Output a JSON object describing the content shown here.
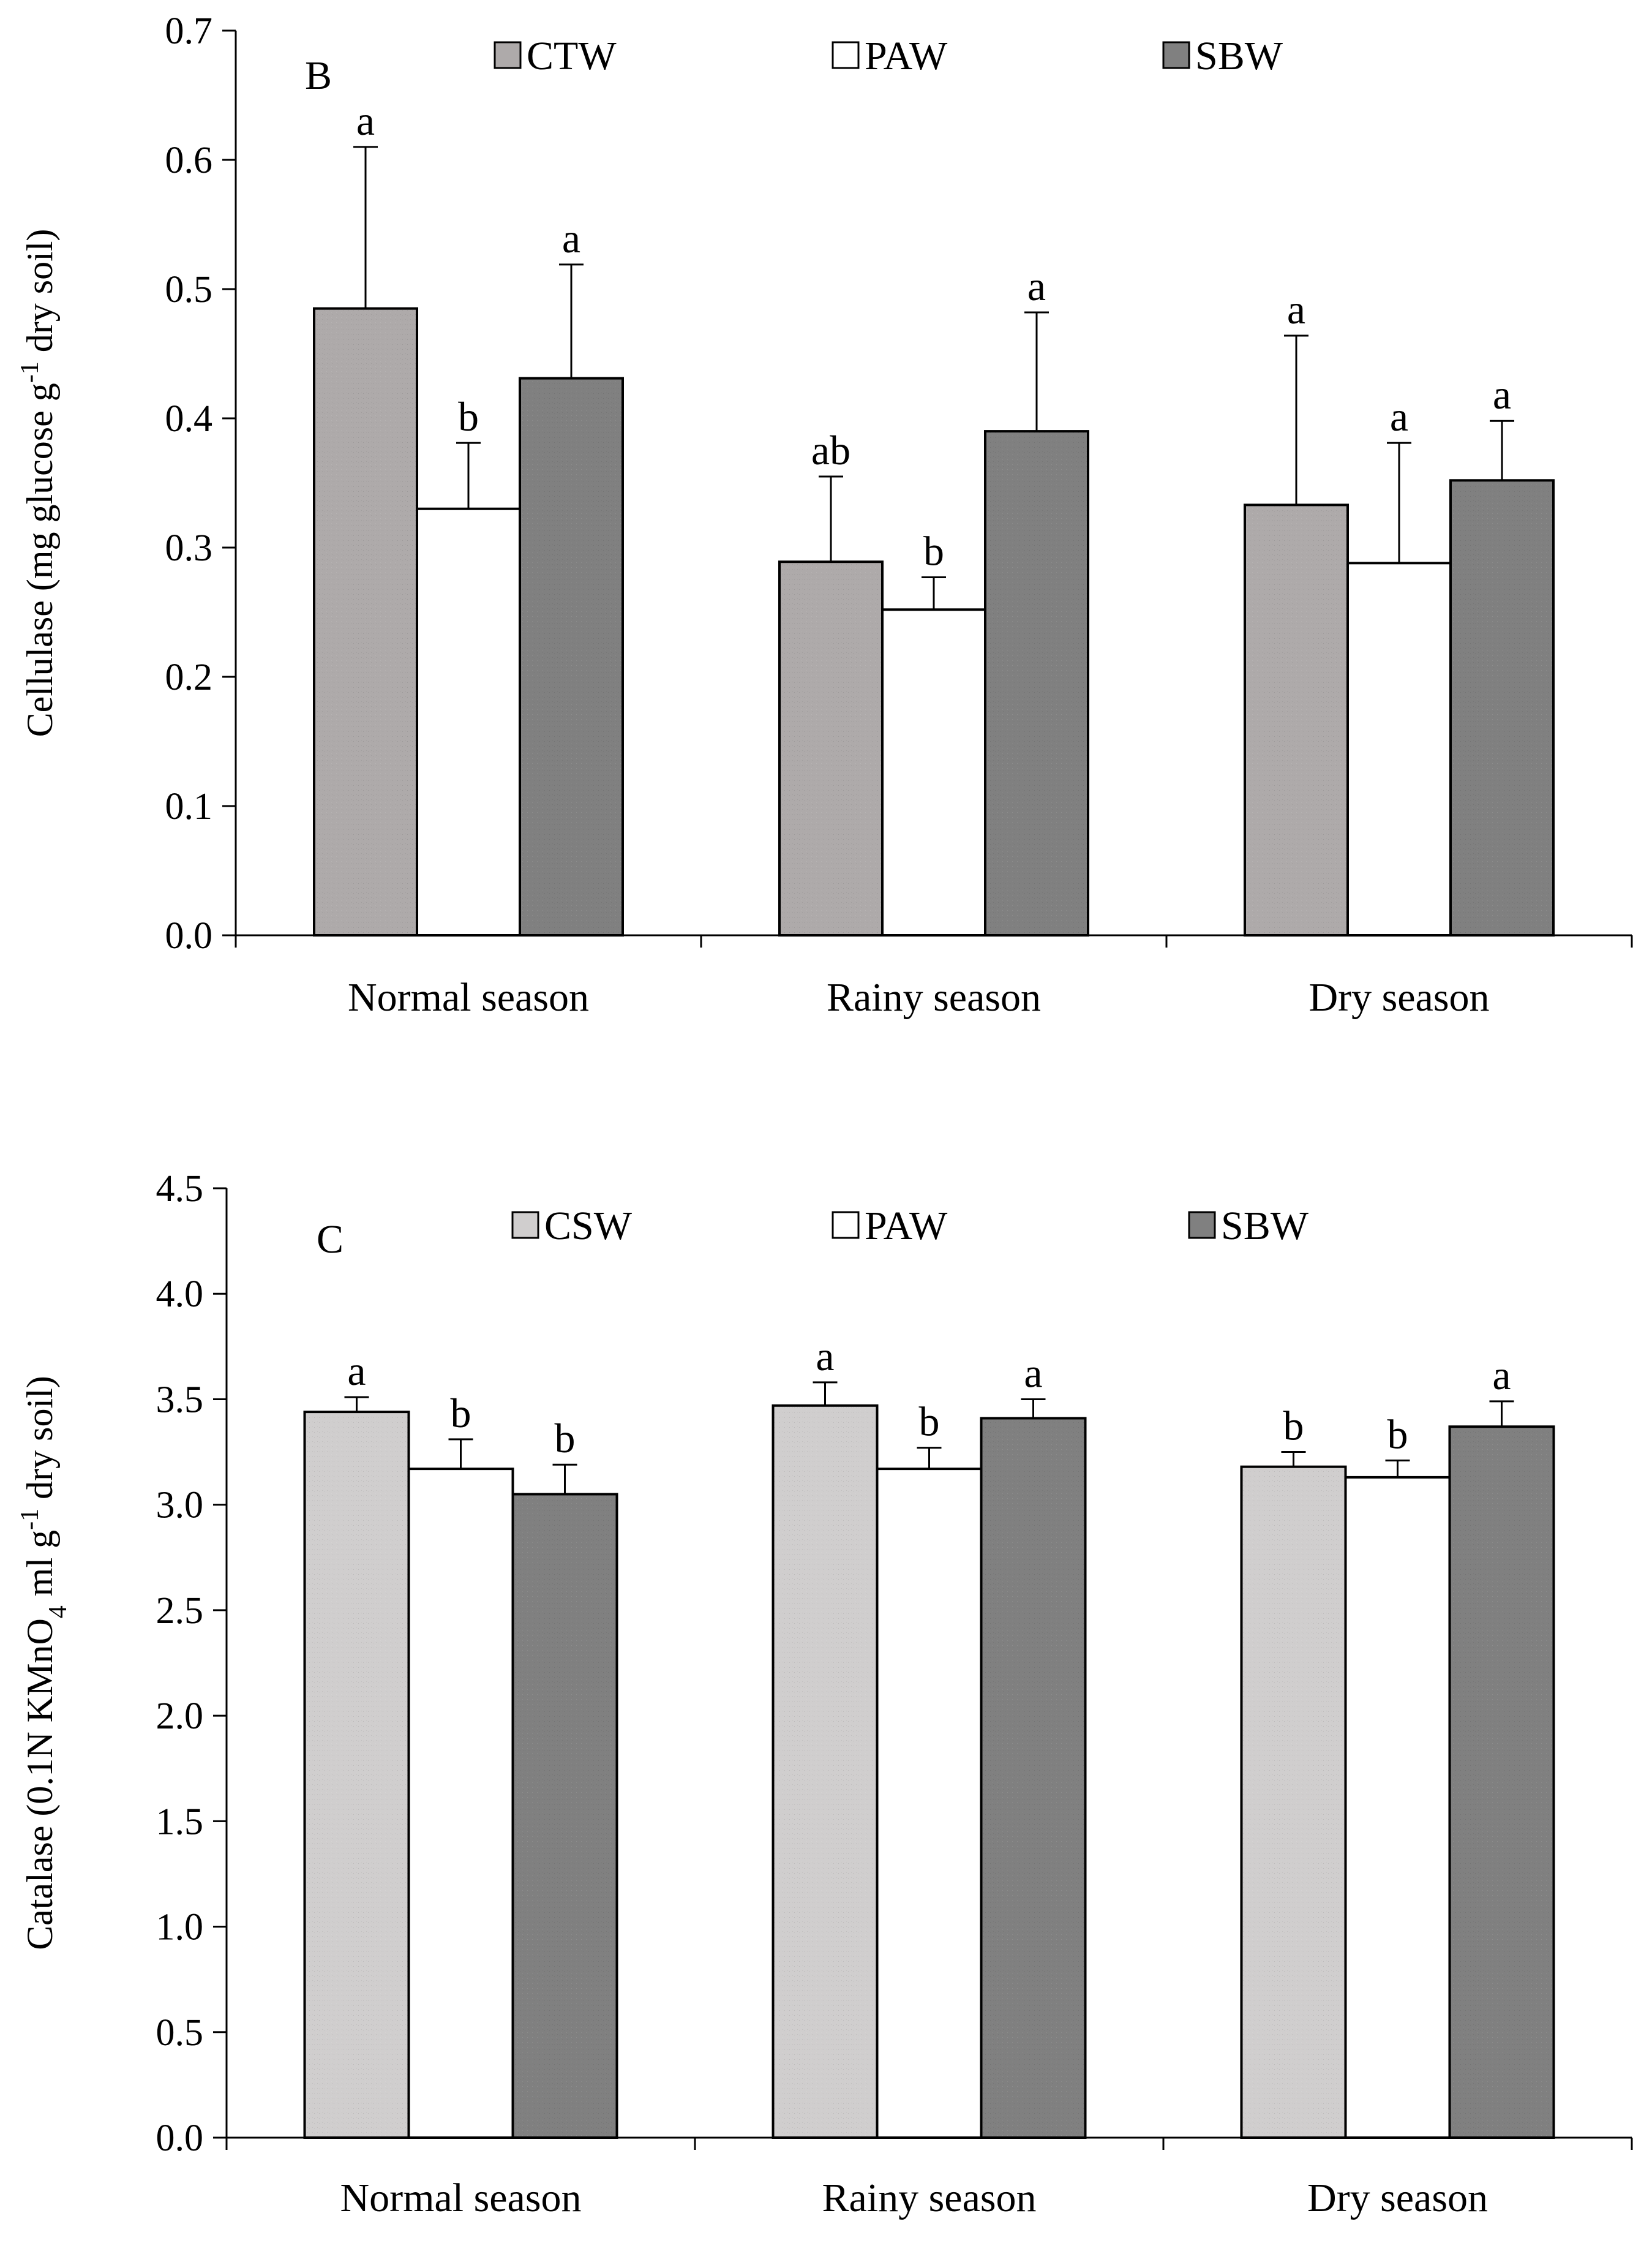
{
  "chart_data": [
    {
      "type": "bar",
      "panel": "B",
      "title": "",
      "xlabel": "",
      "ylabel": {
        "main": "Cellulase (mg glucose g",
        "sup": "-1",
        "tail": " dry soil)"
      },
      "ylim": [
        0,
        0.7
      ],
      "yticks": [
        "0.0",
        "0.1",
        "0.2",
        "0.3",
        "0.4",
        "0.5",
        "0.6",
        "0.7"
      ],
      "ytick_values": [
        0,
        0.1,
        0.2,
        0.3,
        0.4,
        0.5,
        0.6,
        0.7
      ],
      "categories": [
        "Normal season",
        "Rainy season",
        "Dry season"
      ],
      "series": [
        {
          "name": "CTW",
          "color": "#aeaaaa",
          "values": [
            0.485,
            0.289,
            0.333
          ],
          "errors": [
            0.125,
            0.066,
            0.131
          ],
          "letters": [
            "a",
            "ab",
            "a"
          ]
        },
        {
          "name": "PAW",
          "color": "#ffffff",
          "values": [
            0.33,
            0.252,
            0.288
          ],
          "errors": [
            0.051,
            0.025,
            0.093
          ],
          "letters": [
            "b",
            "b",
            "a"
          ]
        },
        {
          "name": "SBW",
          "color": "#808080",
          "values": [
            0.431,
            0.39,
            0.352
          ],
          "errors": [
            0.088,
            0.092,
            0.046
          ],
          "letters": [
            "a",
            "a",
            "a"
          ]
        }
      ],
      "legend_position": "top"
    },
    {
      "type": "bar",
      "panel": "C",
      "title": "",
      "xlabel": "",
      "ylabel": {
        "main": "Catalase (0.1N KMnO",
        "sub": "4",
        "mid": " ml g",
        "sup": "-1",
        "tail": " dry soil)"
      },
      "ylim": [
        0,
        4.5
      ],
      "yticks": [
        "0.0",
        "0.5",
        "1.0",
        "1.5",
        "2.0",
        "2.5",
        "3.0",
        "3.5",
        "4.0",
        "4.5"
      ],
      "ytick_values": [
        0,
        0.5,
        1.0,
        1.5,
        2.0,
        2.5,
        3.0,
        3.5,
        4.0,
        4.5
      ],
      "categories": [
        "Normal season",
        "Rainy season",
        "Dry season"
      ],
      "series": [
        {
          "name": "CSW",
          "color": "#d0cece",
          "values": [
            3.44,
            3.47,
            3.18
          ],
          "errors": [
            0.07,
            0.11,
            0.07
          ],
          "letters": [
            "a",
            "a",
            "b"
          ]
        },
        {
          "name": "PAW",
          "color": "#ffffff",
          "values": [
            3.17,
            3.17,
            3.13
          ],
          "errors": [
            0.14,
            0.1,
            0.08
          ],
          "letters": [
            "b",
            "b",
            "b"
          ]
        },
        {
          "name": "SBW",
          "color": "#808080",
          "values": [
            3.05,
            3.41,
            3.37
          ],
          "errors": [
            0.14,
            0.09,
            0.12
          ],
          "letters": [
            "b",
            "a",
            "a"
          ]
        }
      ],
      "legend_position": "top"
    }
  ]
}
